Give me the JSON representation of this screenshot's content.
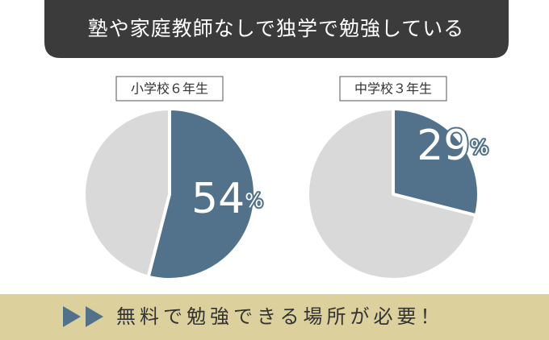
{
  "header": {
    "title": "塾や家庭教師なしで独学で勉強している"
  },
  "chart_data": [
    {
      "type": "pie",
      "title": "小学校６年生",
      "values": [
        54,
        46
      ],
      "value_labels": [
        "54%",
        null
      ],
      "colors": [
        "#52728b",
        "#d9d9da"
      ]
    },
    {
      "type": "pie",
      "title": "中学校３年生",
      "values": [
        29,
        71
      ],
      "value_labels": [
        "29%",
        null
      ],
      "colors": [
        "#52728b",
        "#d9d9da"
      ]
    }
  ],
  "footer": {
    "text": "無料で勉強できる場所が必要！"
  }
}
